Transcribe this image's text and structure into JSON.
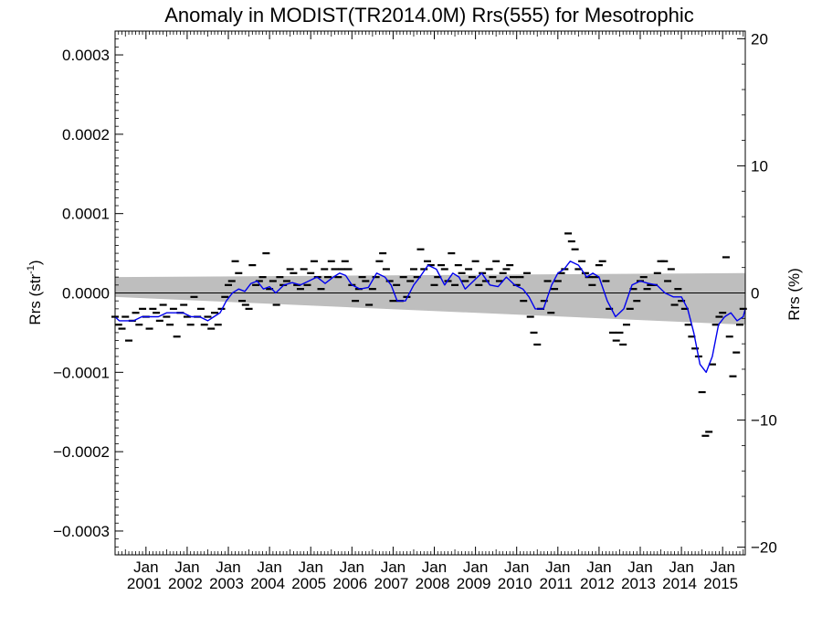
{
  "chart_data": {
    "type": "line",
    "title": "Anomaly in MODIST(TR2014.0M) Rrs(555) for Mesotrophic",
    "ylabel_left": {
      "main": "Rrs (str",
      "sup": "-1",
      "close": ")"
    },
    "ylabel_right": "Rrs (%)",
    "xlim": [
      2000.25,
      2015.55
    ],
    "ylim": [
      -0.00033,
      0.00033
    ],
    "ylim_right": [
      -20.6,
      20.6
    ],
    "grid": false,
    "zero_line": true,
    "x_ticks": [
      {
        "x": 2001.0,
        "month": "Jan",
        "year": "2001"
      },
      {
        "x": 2002.0,
        "month": "Jan",
        "year": "2002"
      },
      {
        "x": 2003.0,
        "month": "Jan",
        "year": "2003"
      },
      {
        "x": 2004.0,
        "month": "Jan",
        "year": "2004"
      },
      {
        "x": 2005.0,
        "month": "Jan",
        "year": "2005"
      },
      {
        "x": 2006.0,
        "month": "Jan",
        "year": "2006"
      },
      {
        "x": 2007.0,
        "month": "Jan",
        "year": "2007"
      },
      {
        "x": 2008.0,
        "month": "Jan",
        "year": "2008"
      },
      {
        "x": 2009.0,
        "month": "Jan",
        "year": "2009"
      },
      {
        "x": 2010.0,
        "month": "Jan",
        "year": "2010"
      },
      {
        "x": 2011.0,
        "month": "Jan",
        "year": "2011"
      },
      {
        "x": 2012.0,
        "month": "Jan",
        "year": "2012"
      },
      {
        "x": 2013.0,
        "month": "Jan",
        "year": "2013"
      },
      {
        "x": 2014.0,
        "month": "Jan",
        "year": "2014"
      },
      {
        "x": 2015.0,
        "month": "Jan",
        "year": "2015"
      }
    ],
    "y_ticks_left": [
      {
        "value": 0.0003,
        "label": "0.0003"
      },
      {
        "value": 0.0002,
        "label": "0.0002"
      },
      {
        "value": 0.0001,
        "label": "0.0001"
      },
      {
        "value": 0.0,
        "label": "0.0000"
      },
      {
        "value": -0.0001,
        "label": "−0.0001"
      },
      {
        "value": -0.0002,
        "label": "−0.0002"
      },
      {
        "value": -0.0003,
        "label": "−0.0003"
      }
    ],
    "y_ticks_right": [
      {
        "value": 20,
        "label": "20"
      },
      {
        "value": 10,
        "label": "10"
      },
      {
        "value": 0,
        "label": "0"
      },
      {
        "value": -10,
        "label": "−10"
      },
      {
        "value": -20,
        "label": "−20"
      }
    ],
    "band": {
      "color": "#bebebe",
      "x": [
        2000.25,
        2015.55
      ],
      "upper": [
        2e-05,
        2.5e-05
      ],
      "lower": [
        -5e-06,
        -4e-05
      ]
    },
    "series": [
      {
        "kind": "monthly",
        "color": "#000000",
        "x": [
          2000.25,
          2000.333,
          2000.417,
          2000.5,
          2000.583,
          2000.667,
          2000.75,
          2000.833,
          2000.917,
          2001.0,
          2001.083,
          2001.167,
          2001.25,
          2001.333,
          2001.417,
          2001.5,
          2001.583,
          2001.667,
          2001.75,
          2001.833,
          2001.917,
          2002.0,
          2002.083,
          2002.167,
          2002.25,
          2002.333,
          2002.417,
          2002.5,
          2002.583,
          2002.667,
          2002.75,
          2002.833,
          2002.917,
          2003.0,
          2003.083,
          2003.167,
          2003.25,
          2003.333,
          2003.417,
          2003.5,
          2003.583,
          2003.667,
          2003.75,
          2003.833,
          2003.917,
          2004.0,
          2004.083,
          2004.167,
          2004.25,
          2004.333,
          2004.417,
          2004.5,
          2004.583,
          2004.667,
          2004.75,
          2004.833,
          2004.917,
          2005.0,
          2005.083,
          2005.167,
          2005.25,
          2005.333,
          2005.417,
          2005.5,
          2005.583,
          2005.667,
          2005.75,
          2005.833,
          2005.917,
          2006.0,
          2006.083,
          2006.167,
          2006.25,
          2006.333,
          2006.417,
          2006.5,
          2006.583,
          2006.667,
          2006.75,
          2006.833,
          2006.917,
          2007.0,
          2007.083,
          2007.167,
          2007.25,
          2007.333,
          2007.417,
          2007.5,
          2007.583,
          2007.667,
          2007.75,
          2007.833,
          2007.917,
          2008.0,
          2008.083,
          2008.167,
          2008.25,
          2008.333,
          2008.417,
          2008.5,
          2008.583,
          2008.667,
          2008.75,
          2008.833,
          2008.917,
          2009.0,
          2009.083,
          2009.167,
          2009.25,
          2009.333,
          2009.417,
          2009.5,
          2009.583,
          2009.667,
          2009.75,
          2009.833,
          2009.917,
          2010.0,
          2010.083,
          2010.167,
          2010.25,
          2010.333,
          2010.417,
          2010.5,
          2010.583,
          2010.667,
          2010.75,
          2010.833,
          2010.917,
          2011.0,
          2011.083,
          2011.167,
          2011.25,
          2011.333,
          2011.417,
          2011.5,
          2011.583,
          2011.667,
          2011.75,
          2011.833,
          2011.917,
          2012.0,
          2012.083,
          2012.167,
          2012.25,
          2012.333,
          2012.417,
          2012.5,
          2012.583,
          2012.667,
          2012.75,
          2012.833,
          2012.917,
          2013.0,
          2013.083,
          2013.167,
          2013.25,
          2013.333,
          2013.417,
          2013.5,
          2013.583,
          2013.667,
          2013.75,
          2013.833,
          2013.917,
          2014.0,
          2014.083,
          2014.167,
          2014.25,
          2014.333,
          2014.417,
          2014.5,
          2014.583,
          2014.667,
          2014.75,
          2014.833,
          2014.917,
          2015.0,
          2015.083,
          2015.167,
          2015.25,
          2015.333,
          2015.417,
          2015.5
        ],
        "y": [
          -3e-05,
          -4e-05,
          -4.5e-05,
          -3e-05,
          -6e-05,
          -3.5e-05,
          -2.5e-05,
          -4e-05,
          -2e-05,
          -3e-05,
          -4.5e-05,
          -2e-05,
          -2.5e-05,
          -3.5e-05,
          -1.5e-05,
          -3e-05,
          -4e-05,
          -2e-05,
          -5.5e-05,
          -2.5e-05,
          -1.5e-05,
          -3e-05,
          -4e-05,
          -5e-06,
          -3e-05,
          -2e-05,
          -4e-05,
          -3e-05,
          -4.5e-05,
          -2.5e-05,
          -4e-05,
          -2e-05,
          -5e-06,
          1e-05,
          1.5e-05,
          4e-05,
          2.5e-05,
          -1e-05,
          -1.5e-05,
          -2e-05,
          3.5e-05,
          1e-05,
          1.5e-05,
          2e-05,
          5e-05,
          5e-06,
          1.5e-05,
          -1.5e-05,
          2e-05,
          1e-05,
          1.5e-05,
          3e-05,
          2.5e-05,
          1e-05,
          5e-06,
          3e-05,
          1e-05,
          2.5e-05,
          4e-05,
          2e-05,
          5e-06,
          3e-05,
          2e-05,
          4e-05,
          3e-05,
          2e-05,
          3e-05,
          4e-05,
          3e-05,
          1e-05,
          -1e-05,
          5e-06,
          2e-05,
          1.5e-05,
          -1.5e-05,
          5e-06,
          2e-05,
          4e-05,
          5e-05,
          3e-05,
          1.5e-05,
          -1e-05,
          1e-05,
          -1e-05,
          2e-05,
          -5e-06,
          1.5e-05,
          3e-05,
          2e-05,
          5.5e-05,
          3e-05,
          4e-05,
          3.5e-05,
          1e-05,
          2e-05,
          3.5e-05,
          3e-05,
          1.5e-05,
          5e-05,
          1e-05,
          3.5e-05,
          2.5e-05,
          1.5e-05,
          3e-05,
          2e-05,
          4e-05,
          1e-05,
          2.5e-05,
          1.5e-05,
          3e-05,
          2e-05,
          4e-05,
          1.5e-05,
          2.5e-05,
          3e-05,
          3.5e-05,
          2e-05,
          1e-05,
          2e-05,
          -1e-05,
          2.5e-05,
          -3e-05,
          -5e-05,
          -6.5e-05,
          -2e-05,
          -1e-05,
          1.5e-05,
          -2.5e-05,
          5e-06,
          1.5e-05,
          2.5e-05,
          3e-05,
          7.5e-05,
          6.5e-05,
          5.5e-05,
          3e-05,
          4e-05,
          2.5e-05,
          2e-05,
          1e-05,
          2e-05,
          3.5e-05,
          4e-05,
          1.5e-05,
          -2e-05,
          -5e-05,
          -6e-05,
          -5e-05,
          -6.5e-05,
          -4e-05,
          -2e-05,
          5e-06,
          -1e-05,
          1.5e-05,
          2e-05,
          5e-06,
          1e-05,
          1e-05,
          2.5e-05,
          4e-05,
          4e-05,
          1.5e-05,
          3e-05,
          -1.5e-05,
          5e-06,
          -1e-05,
          -2e-05,
          -4e-05,
          -5.5e-05,
          -7e-05,
          -8e-05,
          -0.000125,
          -0.00018,
          -0.000175,
          -9e-05,
          -4e-05,
          -3e-05,
          -2.5e-05,
          4.5e-05,
          -5.5e-05,
          -0.000105,
          -7.5e-05,
          -4e-05,
          -2e-05
        ]
      },
      {
        "kind": "smoothed",
        "color": "#0000ee",
        "x": [
          2000.25,
          2000.35,
          2000.5,
          2000.7,
          2000.9,
          2001.1,
          2001.3,
          2001.5,
          2001.7,
          2001.9,
          2002.1,
          2002.3,
          2002.5,
          2002.65,
          2002.8,
          2002.95,
          2003.1,
          2003.25,
          2003.4,
          2003.55,
          2003.7,
          2003.85,
          2004.0,
          2004.15,
          2004.35,
          2004.55,
          2004.75,
          2004.95,
          2005.15,
          2005.35,
          2005.55,
          2005.7,
          2005.85,
          2006.0,
          2006.2,
          2006.4,
          2006.6,
          2006.8,
          2006.95,
          2007.1,
          2007.3,
          2007.5,
          2007.65,
          2007.85,
          2008.05,
          2008.25,
          2008.45,
          2008.6,
          2008.75,
          2008.95,
          2009.15,
          2009.35,
          2009.55,
          2009.75,
          2009.95,
          2010.15,
          2010.3,
          2010.45,
          2010.65,
          2010.85,
          2011.0,
          2011.15,
          2011.3,
          2011.5,
          2011.7,
          2011.85,
          2012.0,
          2012.2,
          2012.4,
          2012.6,
          2012.8,
          2013.0,
          2013.2,
          2013.4,
          2013.6,
          2013.8,
          2014.0,
          2014.15,
          2014.3,
          2014.45,
          2014.6,
          2014.75,
          2014.9,
          2015.05,
          2015.2,
          2015.35,
          2015.5,
          2015.55
        ],
        "y": [
          -3e-05,
          -3.5e-05,
          -3.5e-05,
          -3.5e-05,
          -3e-05,
          -3e-05,
          -3e-05,
          -2.5e-05,
          -2.5e-05,
          -2.5e-05,
          -3e-05,
          -3e-05,
          -3.5e-05,
          -3e-05,
          -2.5e-05,
          -1e-05,
          0.0,
          5e-06,
          2e-06,
          1.2e-05,
          1.5e-05,
          5e-06,
          8e-06,
          0.0,
          1e-05,
          1.3e-05,
          1e-05,
          1.5e-05,
          2e-05,
          1.2e-05,
          2e-05,
          2.5e-05,
          2.2e-05,
          1e-05,
          5e-06,
          7e-06,
          2.5e-05,
          2e-05,
          1e-05,
          -1e-05,
          -1e-05,
          1e-05,
          2e-05,
          3.5e-05,
          3e-05,
          1e-05,
          2.5e-05,
          2e-05,
          5e-06,
          1.5e-05,
          2.5e-05,
          1e-05,
          8e-06,
          2e-05,
          1e-05,
          5e-06,
          -5e-06,
          -2e-05,
          -2e-05,
          1e-05,
          2.5e-05,
          3e-05,
          4e-05,
          3.5e-05,
          2e-05,
          2.5e-05,
          2e-05,
          -1e-05,
          -3e-05,
          -2e-05,
          1e-05,
          1.5e-05,
          1.2e-05,
          1e-05,
          0.0,
          -5e-06,
          -5e-06,
          -2e-05,
          -5e-05,
          -9e-05,
          -0.0001,
          -8e-05,
          -4e-05,
          -3e-05,
          -2.5e-05,
          -3.5e-05,
          -3e-05,
          -2e-05
        ]
      }
    ]
  }
}
